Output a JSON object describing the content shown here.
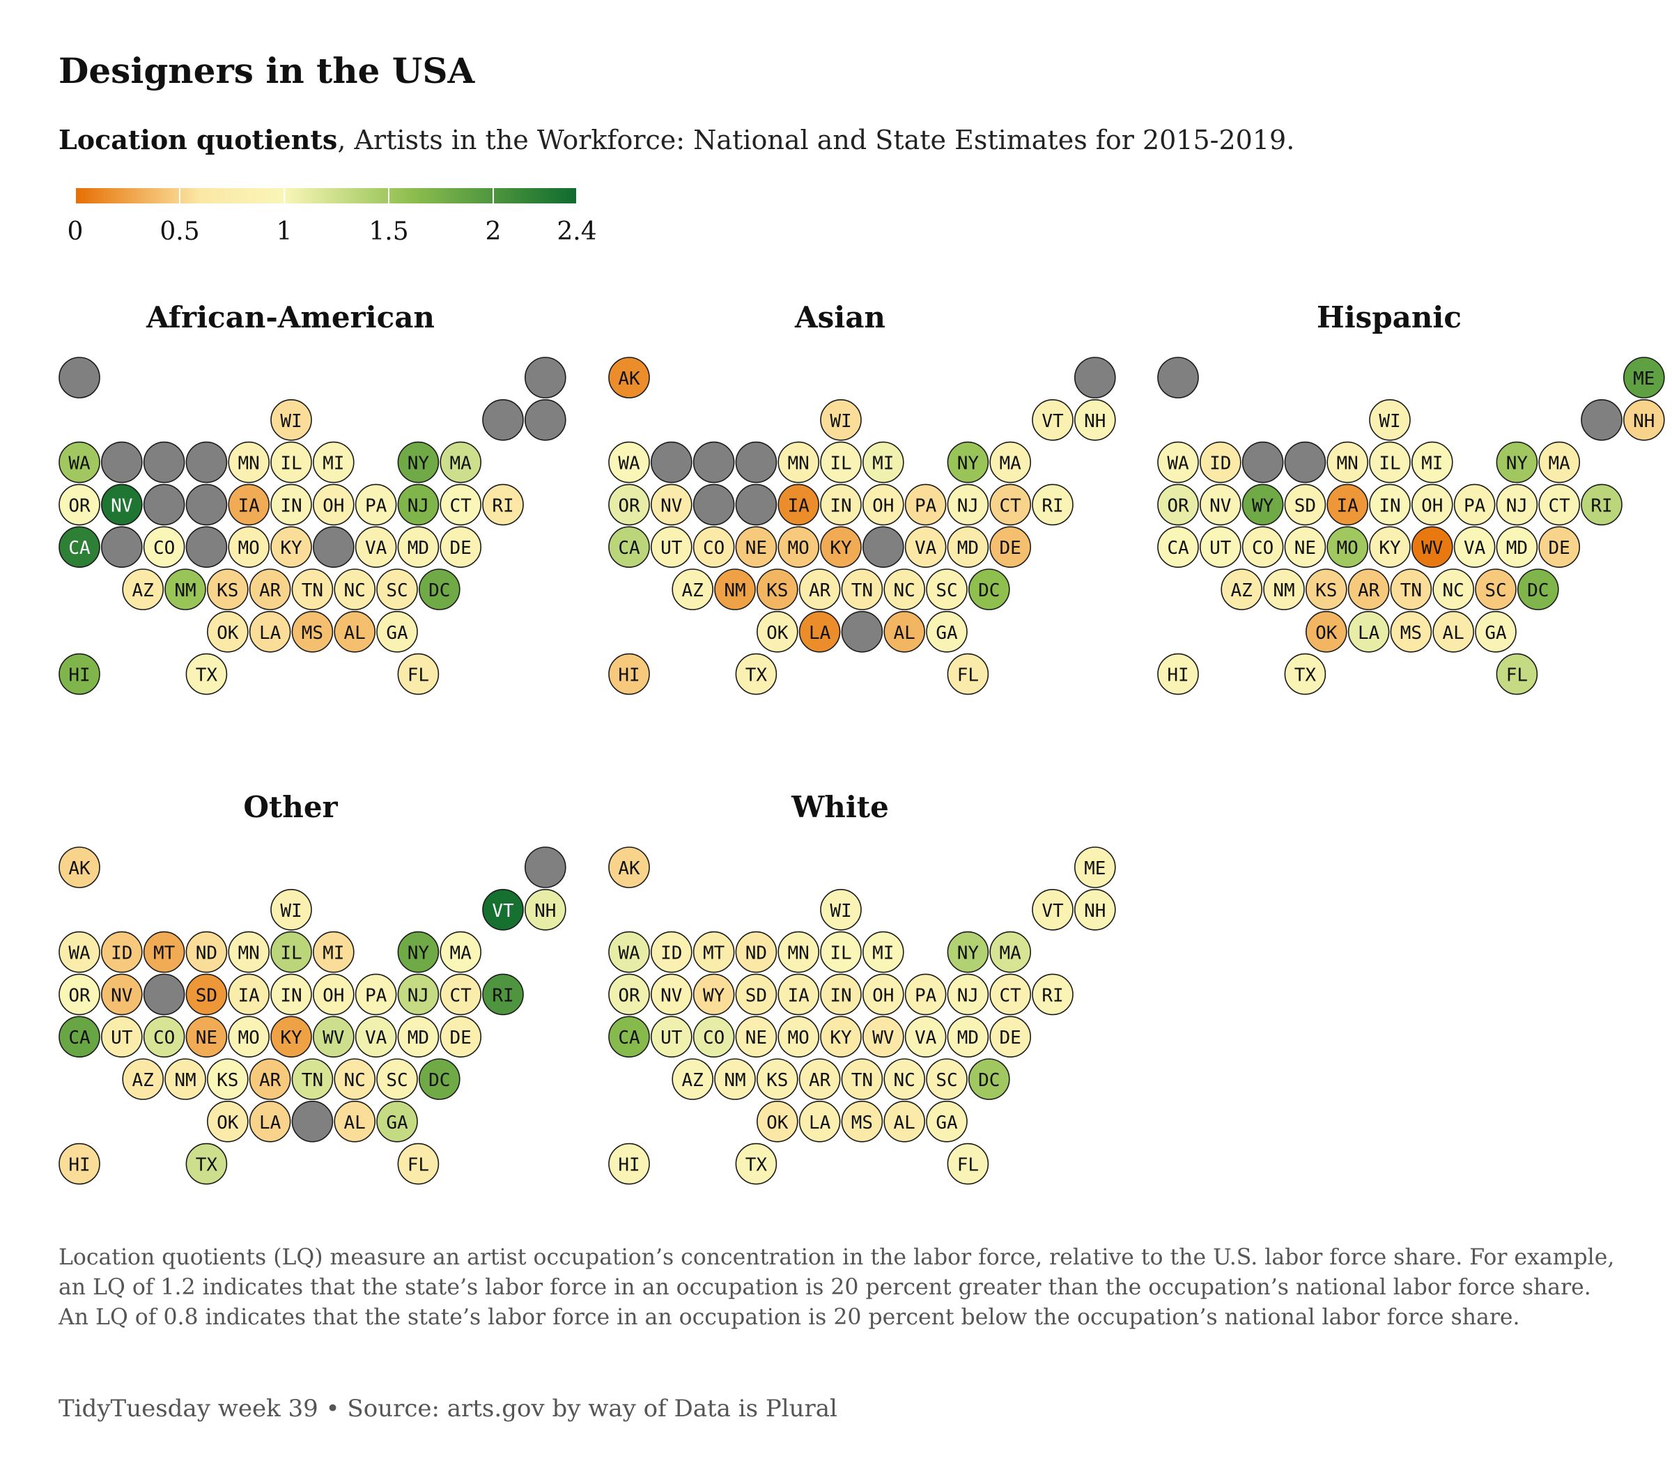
{
  "title": "Designers in the USA",
  "subtitle_bold": "Location quotients",
  "subtitle_rest": ", Artists in the Workforce: National and State Estimates for 2015-2019.",
  "note": "Location quotients (LQ) measure an artist occupation’s concentration in the labor force, relative to the U.S. labor force share. For example, an LQ of 1.2 indicates that the state’s labor force in an occupation is 20 percent greater than the occupation’s national labor force share. An LQ of 0.8 indicates that the state’s labor force in an occupation is 20 percent below the occupation’s national labor force share.",
  "caption": "TidyTuesday week 39 • Source: arts.gov by way of Data is Plural",
  "colors": {
    "missing": "#808080",
    "scale": [
      "#e66f02",
      "#fbe7a6",
      "#f9f6b7",
      "#8fbf4f",
      "#0e6b2e"
    ]
  },
  "chart_data": {
    "type": "heatmap",
    "legend": {
      "ticks": [
        0,
        0.5,
        1,
        1.5,
        2,
        2.4
      ],
      "tick_labels": [
        "0",
        "0.5",
        "1",
        "1.5",
        "2",
        "2.4"
      ],
      "range": [
        0,
        2.4
      ]
    },
    "states": [
      "AK",
      "ME",
      "WI",
      "VT",
      "NH",
      "WA",
      "ID",
      "MT",
      "ND",
      "MN",
      "IL",
      "MI",
      "NY",
      "MA",
      "OR",
      "NV",
      "WY",
      "SD",
      "IA",
      "IN",
      "OH",
      "PA",
      "NJ",
      "CT",
      "RI",
      "CA",
      "UT",
      "CO",
      "NE",
      "MO",
      "KY",
      "WV",
      "VA",
      "MD",
      "DE",
      "AZ",
      "NM",
      "KS",
      "AR",
      "TN",
      "NC",
      "SC",
      "DC",
      "OK",
      "LA",
      "MS",
      "AL",
      "GA",
      "HI",
      "TX",
      "FL"
    ],
    "panels": [
      {
        "title": "African-American",
        "values": {
          "AK": null,
          "ME": null,
          "WI": 0.55,
          "VT": null,
          "NH": null,
          "WA": 1.5,
          "ID": null,
          "MT": null,
          "ND": null,
          "MN": 0.85,
          "IL": 0.9,
          "MI": 0.95,
          "NY": 1.8,
          "MA": 1.25,
          "OR": 1.0,
          "NV": 2.3,
          "WY": null,
          "SD": null,
          "IA": 0.3,
          "IN": 0.95,
          "OH": 0.8,
          "PA": 0.95,
          "NJ": 1.7,
          "CT": 1.0,
          "RI": 0.6,
          "CA": 2.2,
          "UT": null,
          "CO": 1.0,
          "NE": null,
          "MO": 0.8,
          "KY": 0.55,
          "WV": null,
          "VA": 0.85,
          "MD": 0.9,
          "DE": 0.9,
          "AZ": 0.65,
          "NM": 1.55,
          "KS": 0.5,
          "AR": 0.5,
          "TN": 0.6,
          "NC": 0.75,
          "SC": 0.7,
          "DC": 1.8,
          "OK": 0.65,
          "LA": 0.55,
          "MS": 0.4,
          "AL": 0.4,
          "GA": 0.9,
          "HI": 1.7,
          "TX": 0.95,
          "FL": 0.7
        }
      },
      {
        "title": "Asian",
        "values": {
          "AK": 0.15,
          "ME": null,
          "WI": 0.55,
          "VT": 0.85,
          "NH": 0.95,
          "WA": 1.0,
          "ID": null,
          "MT": null,
          "ND": null,
          "MN": 0.8,
          "IL": 0.95,
          "MI": 1.05,
          "NY": 1.55,
          "MA": 0.85,
          "OR": 1.1,
          "NV": 0.7,
          "WY": null,
          "SD": null,
          "IA": 0.15,
          "IN": 0.8,
          "OH": 0.8,
          "PA": 0.55,
          "NJ": 0.95,
          "CT": 0.5,
          "RI": 0.95,
          "CA": 1.35,
          "UT": 0.9,
          "CO": 0.65,
          "NE": 0.45,
          "MO": 0.45,
          "KY": 0.3,
          "WV": null,
          "VA": 0.6,
          "MD": 0.7,
          "DE": 0.4,
          "AZ": 0.9,
          "NM": 0.25,
          "KS": 0.35,
          "AR": 0.75,
          "TN": 0.65,
          "NC": 0.75,
          "SC": 0.9,
          "DC": 1.6,
          "OK": 0.85,
          "LA": 0.15,
          "MS": null,
          "AL": 0.35,
          "GA": 0.95,
          "HI": 0.45,
          "TX": 0.85,
          "FL": 0.7
        }
      },
      {
        "title": "Hispanic",
        "values": {
          "AK": null,
          "ME": 1.9,
          "WI": 0.85,
          "VT": null,
          "NH": 0.5,
          "WA": 0.95,
          "ID": 0.65,
          "MT": null,
          "ND": null,
          "MN": 0.85,
          "IL": 0.95,
          "MI": 1.0,
          "NY": 1.5,
          "MA": 0.75,
          "OR": 1.1,
          "NV": 0.95,
          "WY": 1.8,
          "SD": 0.9,
          "IA": 0.2,
          "IN": 1.0,
          "OH": 0.95,
          "PA": 0.9,
          "NJ": 0.95,
          "CT": 0.95,
          "RI": 1.35,
          "CA": 1.0,
          "UT": 1.0,
          "CO": 0.9,
          "NE": 0.95,
          "MO": 1.5,
          "KY": 0.85,
          "WV": 0.05,
          "VA": 1.0,
          "MD": 1.0,
          "DE": 0.5,
          "AZ": 0.7,
          "NM": 0.85,
          "KS": 0.5,
          "AR": 0.45,
          "TN": 0.55,
          "NC": 0.95,
          "SC": 0.45,
          "DC": 1.7,
          "OK": 0.35,
          "LA": 1.1,
          "MS": 0.65,
          "AL": 0.7,
          "GA": 0.95,
          "HI": 0.95,
          "TX": 0.95,
          "FL": 1.3
        }
      },
      {
        "title": "Other",
        "values": {
          "AK": 0.5,
          "ME": null,
          "WI": 0.85,
          "VT": 2.35,
          "NH": 1.1,
          "WA": 0.75,
          "ID": 0.45,
          "MT": 0.3,
          "ND": 0.55,
          "MN": 0.85,
          "IL": 1.35,
          "MI": 0.55,
          "NY": 1.8,
          "MA": 1.0,
          "OR": 1.0,
          "NV": 0.4,
          "WY": null,
          "SD": 0.2,
          "IA": 0.75,
          "IN": 0.95,
          "OH": 0.9,
          "PA": 0.95,
          "NJ": 1.3,
          "CT": 0.75,
          "RI": 2.0,
          "CA": 1.85,
          "UT": 0.75,
          "CO": 1.2,
          "NE": 0.3,
          "MO": 0.95,
          "KY": 0.25,
          "WV": 1.25,
          "VA": 1.05,
          "MD": 0.95,
          "DE": 0.8,
          "AZ": 0.6,
          "NM": 0.7,
          "KS": 1.0,
          "AR": 0.45,
          "TN": 1.2,
          "NC": 0.6,
          "SC": 0.9,
          "DC": 1.8,
          "OK": 0.7,
          "LA": 0.5,
          "MS": null,
          "AL": 0.55,
          "GA": 1.3,
          "HI": 0.55,
          "TX": 1.25,
          "FL": 0.7
        }
      },
      {
        "title": "White",
        "values": {
          "AK": 0.5,
          "ME": 0.9,
          "WI": 0.95,
          "VT": 0.9,
          "NH": 0.95,
          "WA": 1.1,
          "ID": 0.85,
          "MT": 0.75,
          "ND": 0.6,
          "MN": 0.9,
          "IL": 1.0,
          "MI": 1.0,
          "NY": 1.4,
          "MA": 1.2,
          "OR": 1.05,
          "NV": 0.9,
          "WY": 0.55,
          "SD": 0.75,
          "IA": 0.8,
          "IN": 0.75,
          "OH": 0.85,
          "PA": 0.85,
          "NJ": 0.95,
          "CT": 0.85,
          "RI": 0.95,
          "CA": 1.65,
          "UT": 1.05,
          "CO": 1.1,
          "NE": 0.8,
          "MO": 0.85,
          "KY": 0.65,
          "WV": 0.6,
          "VA": 0.95,
          "MD": 0.95,
          "DE": 0.85,
          "AZ": 0.95,
          "NM": 0.85,
          "KS": 0.85,
          "AR": 0.8,
          "TN": 0.75,
          "NC": 0.85,
          "SC": 0.85,
          "DC": 1.5,
          "OK": 0.6,
          "LA": 0.8,
          "MS": 0.65,
          "AL": 0.7,
          "GA": 0.9,
          "HI": 0.95,
          "TX": 0.95,
          "FL": 0.95
        }
      }
    ]
  }
}
